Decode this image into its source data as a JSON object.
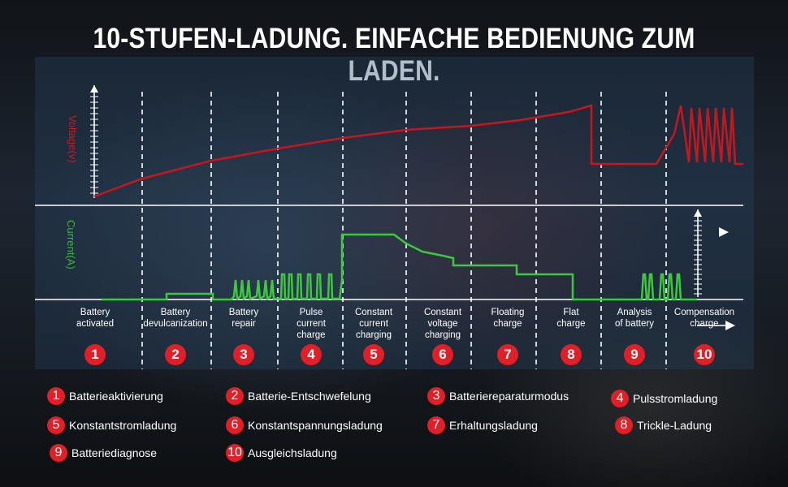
{
  "title": "10-STUFEN-LADUNG. EINFACHE BEDIENUNG ZUM LADEN.",
  "axes": {
    "voltage": "Voltage(v)",
    "current": "Current(A)"
  },
  "colors": {
    "voltage": "#c8161d",
    "current": "#3cc93f",
    "badge": "#e01f26"
  },
  "stages": [
    {
      "num": "1",
      "label": "Battery\nactivated"
    },
    {
      "num": "2",
      "label": "Battery\ndevulcanization"
    },
    {
      "num": "3",
      "label": "Battery\nrepair"
    },
    {
      "num": "4",
      "label": "Pulse\ncurrent\ncharge"
    },
    {
      "num": "5",
      "label": "Constant\ncurrent\ncharging"
    },
    {
      "num": "6",
      "label": "Constant\nvoltage\ncharging"
    },
    {
      "num": "7",
      "label": "Floating\ncharge"
    },
    {
      "num": "8",
      "label": "Flat\ncharge"
    },
    {
      "num": "9",
      "label": "Analysis\nof battery"
    },
    {
      "num": "10",
      "label": "Compensation\ncharge"
    }
  ],
  "legend": [
    {
      "num": "1",
      "text": "Batterieaktivierung"
    },
    {
      "num": "2",
      "text": "Batterie-Entschwefelung"
    },
    {
      "num": "3",
      "text": "Batteriereparaturmodus"
    },
    {
      "num": "4",
      "text": "Pulsstromladung"
    },
    {
      "num": "5",
      "text": "Konstantstromladung"
    },
    {
      "num": "6",
      "text": "Konstantspannungsladung"
    },
    {
      "num": "7",
      "text": "Erhaltungsladung"
    },
    {
      "num": "8",
      "text": "Trickle-Ladung"
    },
    {
      "num": "9",
      "text": "Batteriediagnose"
    },
    {
      "num": "10",
      "text": "Ausgleichsladung"
    }
  ]
}
